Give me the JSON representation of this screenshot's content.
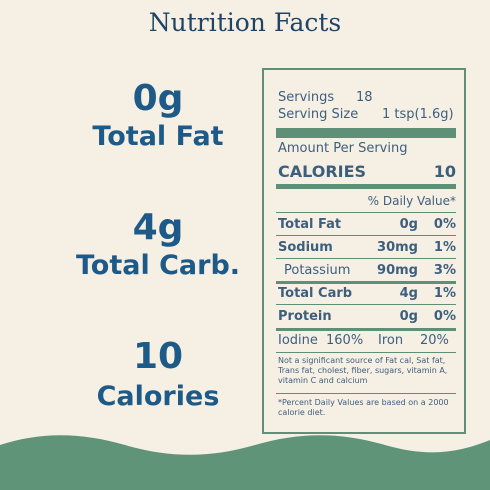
{
  "header": {
    "title": "Nutrition Facts"
  },
  "highlights": [
    {
      "value": "0g",
      "label": "Total Fat"
    },
    {
      "value": "4g",
      "label": "Total Carb."
    },
    {
      "value": "10",
      "label": "Calories"
    }
  ],
  "label": {
    "servings": {
      "label": "Servings",
      "value": "18"
    },
    "serving_size": {
      "label": "Serving Size",
      "value": "1 tsp(1.6g)"
    },
    "amount_per_serving": "Amount Per Serving",
    "calories": {
      "label": "CALORIES",
      "value": "10"
    },
    "daily_value_header": "% Daily Value*",
    "rows": [
      {
        "name": "Total Fat",
        "amount": "0g",
        "percent": "0%"
      },
      {
        "name": "Sodium",
        "amount": "30mg",
        "percent": "1%"
      },
      {
        "name": "Potassium",
        "amount": "90mg",
        "percent": "3%"
      },
      {
        "name": "Total Carb",
        "amount": "4g",
        "percent": "1%"
      },
      {
        "name": "Protein",
        "amount": "0g",
        "percent": "0%"
      }
    ],
    "minerals": [
      {
        "name": "Iodine",
        "percent": "160%"
      },
      {
        "name": "Iron",
        "percent": "20%"
      }
    ],
    "footnotes": [
      "Not a significant source of Fat cal, Sat fat, Trans fat, cholest, fiber, sugars, vitamin A, vitamin C and calcium",
      "*Percent Daily Values are based on a 2000 calorie diet."
    ]
  }
}
